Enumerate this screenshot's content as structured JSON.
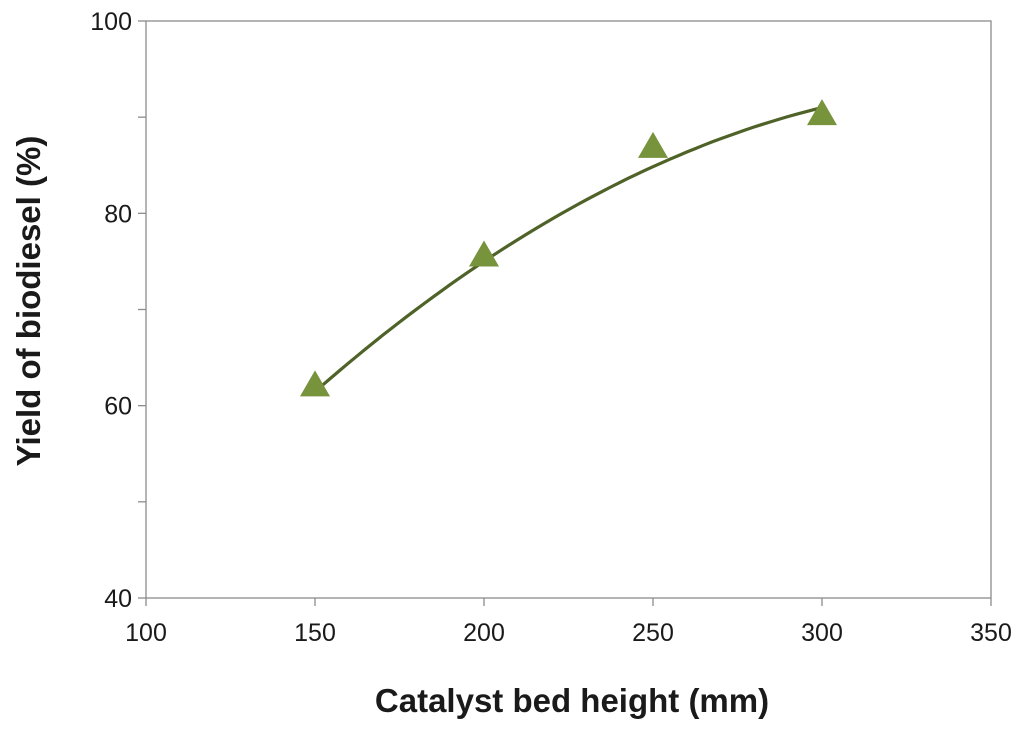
{
  "chart_data": {
    "type": "scatter",
    "title": "",
    "xlabel": "Catalyst bed height (mm)",
    "ylabel": "Yield of biodiesel (%)",
    "xlim": [
      100,
      350
    ],
    "ylim": [
      40,
      100
    ],
    "x_ticks": [
      "100",
      "150",
      "200",
      "250",
      "300",
      "350"
    ],
    "y_ticks": [
      "40",
      "60",
      "80",
      "100"
    ],
    "y_minor_ticks": [
      50,
      70,
      90
    ],
    "grid": false,
    "legend": "none",
    "series": [
      {
        "marker": "triangle",
        "color": "#77933c",
        "points": [
          {
            "x": 150,
            "y": 62
          },
          {
            "x": 200,
            "y": 75.5
          },
          {
            "x": 250,
            "y": 86.8
          },
          {
            "x": 300,
            "y": 90.2
          }
        ],
        "trendline": {
          "type": "polynomial-2",
          "color": "#4f6228",
          "coefficients": [
            -1.4,
            0.53,
            -0.00074
          ]
        }
      }
    ]
  }
}
